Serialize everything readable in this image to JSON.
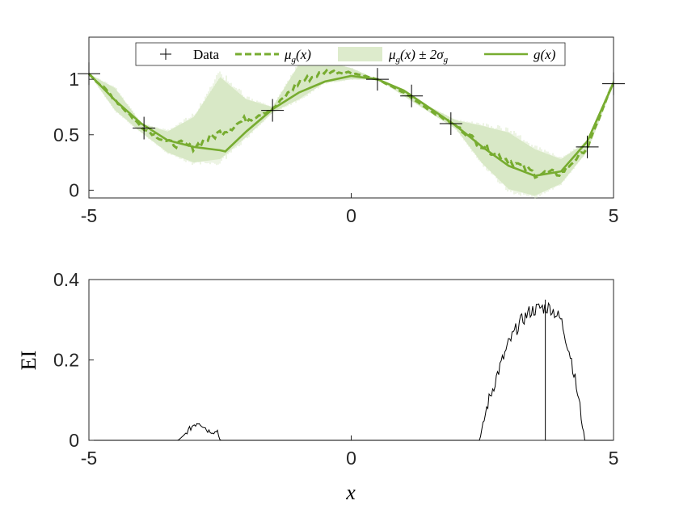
{
  "colors": {
    "green": "#77AC30",
    "band": "#DDEBCC",
    "black": "#000000",
    "axis": "#262626"
  },
  "chart_data": [
    {
      "type": "line",
      "xlim": [
        -5,
        5
      ],
      "ylim": [
        -0.07,
        1.38
      ],
      "x_ticks": [
        -5,
        0,
        5
      ],
      "x_tick_labels": [
        "-5",
        "0",
        "5"
      ],
      "y_ticks": [
        0,
        0.5,
        1
      ],
      "y_tick_labels": [
        "0",
        "0.5",
        "1"
      ],
      "legend": {
        "placement": "top-center",
        "entries": [
          {
            "label": "Data",
            "style": "plus-marker"
          },
          {
            "label": "μ_g(x)",
            "style": "dashed-green"
          },
          {
            "label": "μ_g(x) ± 2σ_g",
            "style": "shaded-green"
          },
          {
            "label": "g(x)",
            "style": "solid-green"
          }
        ]
      },
      "data_points": {
        "x": [
          -5,
          -3.95,
          -1.5,
          0.5,
          1.15,
          1.9,
          4.5,
          5
        ],
        "y": [
          1.05,
          0.56,
          0.72,
          1.0,
          0.85,
          0.6,
          0.39,
          0.96
        ]
      },
      "g": {
        "x": [
          -5,
          -4.5,
          -4,
          -3.5,
          -3,
          -2.5,
          -2.4,
          -2,
          -1.5,
          -1,
          -0.5,
          0,
          0.5,
          1,
          1.5,
          2,
          2.5,
          3,
          3.5,
          4,
          4.5,
          5
        ],
        "y": [
          1.05,
          0.81,
          0.6,
          0.45,
          0.39,
          0.36,
          0.35,
          0.53,
          0.73,
          0.88,
          0.98,
          1.03,
          1.0,
          0.9,
          0.74,
          0.58,
          0.39,
          0.22,
          0.13,
          0.17,
          0.44,
          0.97
        ]
      },
      "mu": {
        "x": [
          -5,
          -4.5,
          -4,
          -3.5,
          -3,
          -2.5,
          -2,
          -1.5,
          -1,
          -0.5,
          0,
          0.5,
          1,
          1.5,
          2,
          2.5,
          3,
          3.5,
          4,
          4.5,
          5
        ],
        "y": [
          1.05,
          0.82,
          0.57,
          0.43,
          0.39,
          0.52,
          0.64,
          0.73,
          0.97,
          1.07,
          1.06,
          1.0,
          0.88,
          0.72,
          0.58,
          0.4,
          0.27,
          0.15,
          0.15,
          0.38,
          0.98
        ]
      },
      "band": {
        "x": [
          -5,
          -4.5,
          -4,
          -3.5,
          -3,
          -2.5,
          -2,
          -1.5,
          -1,
          -0.5,
          0,
          0.5,
          1,
          1.5,
          2,
          2.5,
          3,
          3.5,
          4,
          4.5,
          5
        ],
        "upper": [
          1.05,
          0.92,
          0.6,
          0.53,
          0.66,
          1.02,
          0.82,
          0.75,
          1.13,
          1.16,
          1.1,
          1.0,
          0.9,
          0.75,
          0.63,
          0.58,
          0.52,
          0.37,
          0.28,
          0.44,
          1.0
        ],
        "lower": [
          1.05,
          0.72,
          0.52,
          0.34,
          0.25,
          0.28,
          0.48,
          0.7,
          0.82,
          0.97,
          1.0,
          1.0,
          0.85,
          0.7,
          0.55,
          0.24,
          0.01,
          -0.05,
          0.06,
          0.35,
          0.95
        ]
      }
    },
    {
      "type": "line",
      "xlim": [
        -5,
        5
      ],
      "ylim": [
        0,
        0.4
      ],
      "ylabel": "EI",
      "xlabel": "x",
      "x_ticks": [
        -5,
        0,
        5
      ],
      "x_tick_labels": [
        "-5",
        "0",
        "5"
      ],
      "y_ticks": [
        0,
        0.2,
        0.4
      ],
      "y_tick_labels": [
        "0",
        "0.2",
        "0.4"
      ],
      "ei": {
        "x": [
          -5,
          -3.3,
          -3.2,
          -3.1,
          -3.0,
          -2.9,
          -2.8,
          -2.75,
          -2.6,
          -2.55,
          -2.5,
          2.45,
          2.6,
          2.8,
          3.0,
          3.2,
          3.4,
          3.6,
          3.8,
          4.0,
          4.2,
          4.35,
          4.45,
          5
        ],
        "y": [
          0,
          0,
          0.01,
          0.025,
          0.04,
          0.048,
          0.035,
          0.025,
          0.02,
          0.025,
          0,
          0,
          0.09,
          0.17,
          0.24,
          0.29,
          0.32,
          0.33,
          0.33,
          0.3,
          0.2,
          0.09,
          0,
          0
        ]
      },
      "spike": {
        "x": 3.7,
        "y": 0.35
      }
    }
  ]
}
